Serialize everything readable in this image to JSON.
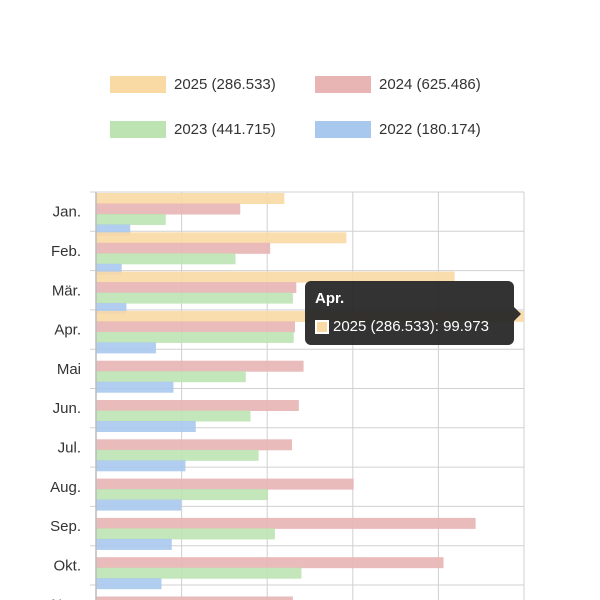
{
  "colors": {
    "s2025": "#f9d9a4",
    "s2024": "#e8b4b4",
    "s2023": "#bde3b3",
    "s2022": "#a9c8ee",
    "grid": "#d0d0d0",
    "axis": "#bbbbbb"
  },
  "tooltip": {
    "title": "Apr.",
    "series": "2025 (286.533)",
    "value": "99.973",
    "text": "2025 (286.533): 99.973"
  },
  "chart_data": {
    "type": "bar",
    "orientation": "horizontal",
    "categories": [
      "Jan.",
      "Feb.",
      "Mär.",
      "Apr.",
      "Mai",
      "Jun.",
      "Jul.",
      "Aug.",
      "Sep.",
      "Okt.",
      "Nov."
    ],
    "xlim": [
      0,
      100000
    ],
    "grid": true,
    "legend_position": "top",
    "series": [
      {
        "name": "2025 (286.533)",
        "color": "#f9d9a4",
        "values": [
          44000,
          58500,
          83800,
          99973,
          null,
          null,
          null,
          null,
          null,
          null,
          null
        ]
      },
      {
        "name": "2024 (625.486)",
        "color": "#e8b4b4",
        "values": [
          33700,
          40700,
          46800,
          46500,
          48500,
          47400,
          45800,
          60200,
          88700,
          81200,
          46000
        ]
      },
      {
        "name": "2023 (441.715)",
        "color": "#bde3b3",
        "values": [
          16300,
          32600,
          46000,
          46200,
          35000,
          36100,
          38000,
          40200,
          41800,
          48000,
          null
        ]
      },
      {
        "name": "2022 (180.174)",
        "color": "#a9c8ee",
        "values": [
          8000,
          6000,
          7100,
          14000,
          18100,
          23300,
          20900,
          19900,
          17700,
          15300,
          null
        ]
      }
    ]
  }
}
